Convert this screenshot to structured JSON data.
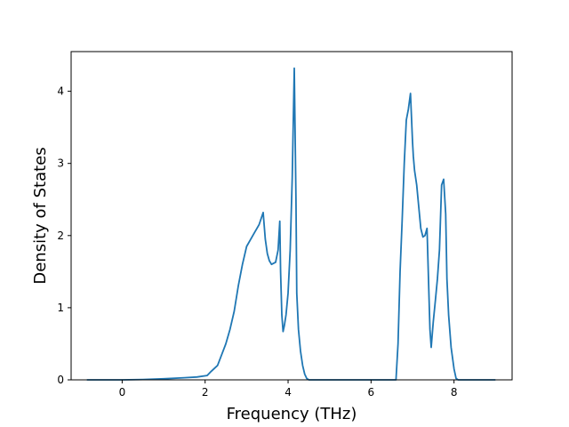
{
  "chart_data": {
    "type": "line",
    "title": "",
    "xlabel": "Frequency (THz)",
    "ylabel": "Density of States",
    "xlim": [
      -1.23,
      9.4
    ],
    "ylim": [
      0,
      4.55
    ],
    "xticks": [
      0,
      2,
      4,
      6,
      8
    ],
    "yticks": [
      0,
      1,
      2,
      3,
      4
    ],
    "grid": false,
    "legend": "none",
    "colors": {
      "line": "#1f77b4",
      "axes": "#000000",
      "background": "#ffffff"
    },
    "series": [
      {
        "x": [
          -0.85,
          -0.5,
          0,
          0.5,
          1.0,
          1.5,
          1.8,
          2.05,
          2.15,
          2.3,
          2.4,
          2.5,
          2.6,
          2.7,
          2.8,
          2.9,
          3.0,
          3.1,
          3.2,
          3.3,
          3.4,
          3.45,
          3.5,
          3.55,
          3.6,
          3.7,
          3.76,
          3.8,
          3.82,
          3.85,
          3.88,
          3.91,
          3.95,
          4.0,
          4.05,
          4.1,
          4.15,
          4.19,
          4.21,
          4.25,
          4.3,
          4.35,
          4.4,
          4.45,
          4.5,
          4.55,
          5.0,
          6.0,
          6.6,
          6.65,
          6.7,
          6.75,
          6.8,
          6.85,
          6.9,
          6.95,
          7.0,
          7.02,
          7.05,
          7.1,
          7.15,
          7.2,
          7.25,
          7.3,
          7.35,
          7.42,
          7.45,
          7.5,
          7.55,
          7.6,
          7.65,
          7.7,
          7.75,
          7.8,
          7.83,
          7.87,
          7.93,
          8.0,
          8.05,
          8.1,
          8.15,
          8.5,
          9.0
        ],
        "y": [
          0,
          0,
          0,
          0.005,
          0.015,
          0.03,
          0.04,
          0.06,
          0.12,
          0.2,
          0.35,
          0.5,
          0.7,
          0.95,
          1.3,
          1.6,
          1.85,
          1.95,
          2.05,
          2.15,
          2.32,
          1.95,
          1.75,
          1.65,
          1.6,
          1.63,
          1.8,
          2.2,
          1.5,
          0.9,
          0.67,
          0.75,
          0.9,
          1.2,
          1.8,
          2.8,
          4.32,
          2.5,
          1.2,
          0.7,
          0.4,
          0.2,
          0.08,
          0.02,
          0,
          0,
          0,
          0,
          0,
          0.5,
          1.5,
          2.2,
          3.0,
          3.6,
          3.75,
          3.97,
          3.3,
          3.1,
          2.9,
          2.7,
          2.4,
          2.1,
          1.98,
          2.0,
          2.1,
          0.7,
          0.45,
          0.8,
          1.1,
          1.4,
          1.8,
          2.7,
          2.78,
          2.3,
          1.4,
          0.9,
          0.45,
          0.15,
          0.02,
          0,
          0,
          0,
          0
        ]
      }
    ]
  }
}
